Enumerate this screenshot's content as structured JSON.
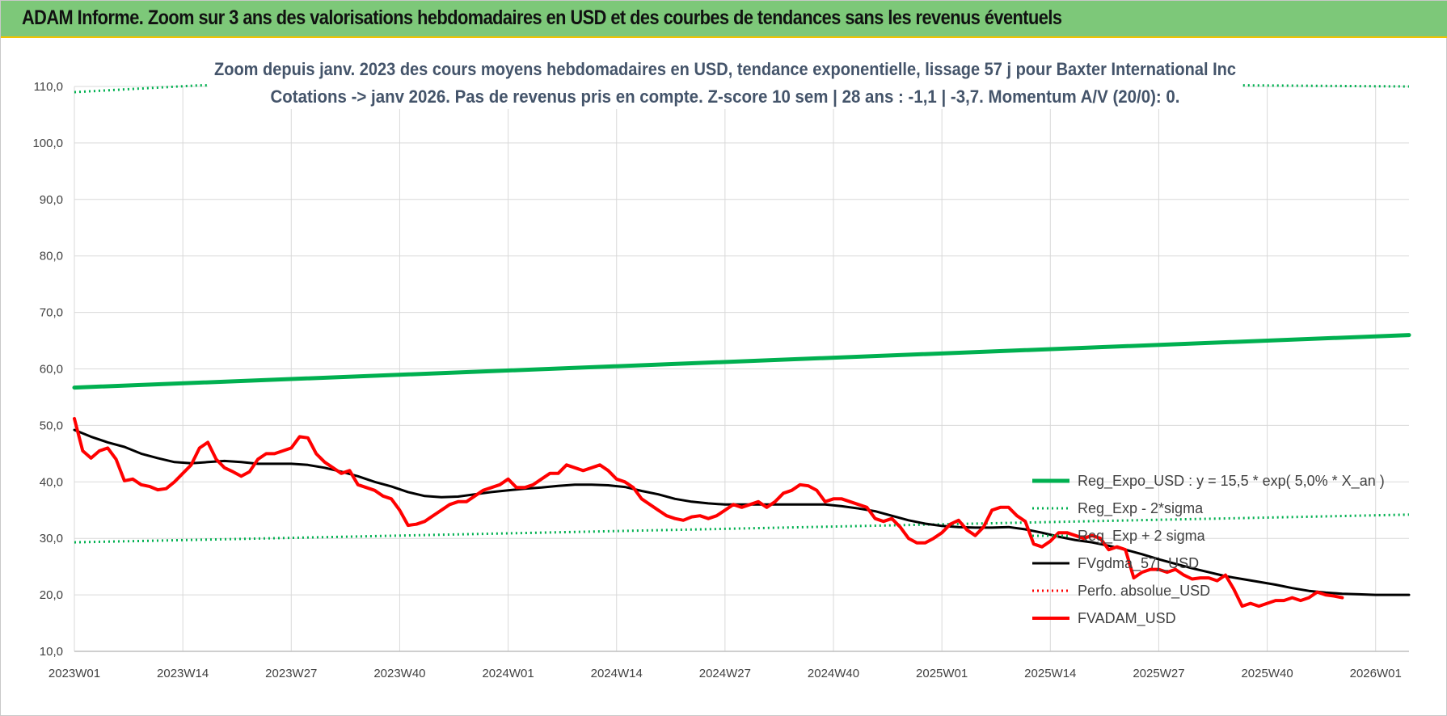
{
  "banner": {
    "title": "ADAM Informe. Zoom sur 3 ans des valorisations hebdomadaires en USD et des courbes de tendances sans les revenus éventuels"
  },
  "colors": {
    "banner_bg": "#7dc879",
    "reg_expo": "#00b050",
    "fv_adam": "#ff0000",
    "fvgdma": "#000000",
    "text": "#404040",
    "subtitle": "#44546a",
    "grid": "#d9d9d9"
  },
  "chart_data": {
    "type": "line",
    "title": [
      "Zoom depuis janv. 2023 des cours moyens hebdomadaires en USD, tendance exponentielle, lissage 57 j pour Baxter International Inc",
      "Cotations -> janv 2026. Pas de revenus pris en compte. Z-score 10 sem | 28 ans : -1,1 | -3,7. Momentum A/V (20/0): 0."
    ],
    "xlabel": "",
    "ylabel": "",
    "ylim": [
      10,
      110
    ],
    "yticks": [
      "10,0",
      "20,0",
      "30,0",
      "40,0",
      "50,0",
      "60,0",
      "70,0",
      "80,0",
      "90,0",
      "100,0",
      "110,0"
    ],
    "x_range_weeks": [
      0,
      160
    ],
    "x_ticks": [
      {
        "label": "2023W01",
        "week": 0
      },
      {
        "label": "2023W14",
        "week": 13
      },
      {
        "label": "2023W27",
        "week": 26
      },
      {
        "label": "2023W40",
        "week": 39
      },
      {
        "label": "2024W01",
        "week": 52
      },
      {
        "label": "2024W14",
        "week": 65
      },
      {
        "label": "2024W27",
        "week": 78
      },
      {
        "label": "2024W40",
        "week": 91
      },
      {
        "label": "2025W01",
        "week": 104
      },
      {
        "label": "2025W14",
        "week": 117
      },
      {
        "label": "2025W27",
        "week": 130
      },
      {
        "label": "2025W40",
        "week": 143
      },
      {
        "label": "2026W01",
        "week": 156
      }
    ],
    "grid": true,
    "legend_position": "lower-right",
    "series": [
      {
        "name": "Reg_Expo_USD : y = 15,5 * exp( 5,0% *  X_an )",
        "color": "#00b050",
        "style": "solid",
        "width": 5,
        "points": [
          [
            0,
            56.7
          ],
          [
            160,
            66.0
          ]
        ]
      },
      {
        "name": "Reg_Exp - 2*sigma",
        "color": "#00b050",
        "style": "dotted",
        "width": 3,
        "points": [
          [
            0,
            29.3
          ],
          [
            160,
            34.2
          ]
        ]
      },
      {
        "name": "Reg_Exp + 2 sigma",
        "color": "#00b050",
        "style": "dotted",
        "width": 3,
        "points": [
          [
            0,
            109.0
          ],
          [
            15,
            110.2
          ],
          [
            140,
            110.2
          ],
          [
            160,
            110.0
          ]
        ]
      },
      {
        "name": "FVgdma_57j_USD",
        "color": "#000000",
        "style": "solid",
        "width": 3,
        "points": [
          [
            0,
            49.2
          ],
          [
            2,
            48.0
          ],
          [
            4,
            47.0
          ],
          [
            6,
            46.2
          ],
          [
            8,
            45.0
          ],
          [
            10,
            44.2
          ],
          [
            12,
            43.5
          ],
          [
            14,
            43.3
          ],
          [
            16,
            43.5
          ],
          [
            18,
            43.7
          ],
          [
            20,
            43.5
          ],
          [
            22,
            43.2
          ],
          [
            24,
            43.2
          ],
          [
            26,
            43.2
          ],
          [
            28,
            43.0
          ],
          [
            30,
            42.5
          ],
          [
            32,
            41.8
          ],
          [
            34,
            41.0
          ],
          [
            36,
            40.0
          ],
          [
            38,
            39.2
          ],
          [
            40,
            38.2
          ],
          [
            42,
            37.5
          ],
          [
            44,
            37.3
          ],
          [
            46,
            37.4
          ],
          [
            48,
            37.8
          ],
          [
            50,
            38.2
          ],
          [
            52,
            38.5
          ],
          [
            54,
            38.8
          ],
          [
            56,
            39.0
          ],
          [
            58,
            39.3
          ],
          [
            60,
            39.5
          ],
          [
            62,
            39.5
          ],
          [
            64,
            39.4
          ],
          [
            66,
            39.1
          ],
          [
            68,
            38.4
          ],
          [
            70,
            37.8
          ],
          [
            72,
            37.0
          ],
          [
            74,
            36.5
          ],
          [
            76,
            36.2
          ],
          [
            78,
            36.0
          ],
          [
            80,
            36.0
          ],
          [
            82,
            36.0
          ],
          [
            84,
            36.0
          ],
          [
            86,
            36.0
          ],
          [
            88,
            36.0
          ],
          [
            90,
            36.0
          ],
          [
            92,
            35.7
          ],
          [
            94,
            35.3
          ],
          [
            96,
            34.8
          ],
          [
            98,
            34.0
          ],
          [
            100,
            33.2
          ],
          [
            102,
            32.6
          ],
          [
            104,
            32.2
          ],
          [
            106,
            32.0
          ],
          [
            108,
            31.9
          ],
          [
            110,
            31.9
          ],
          [
            112,
            32.0
          ],
          [
            114,
            31.6
          ],
          [
            116,
            31.0
          ],
          [
            118,
            30.3
          ],
          [
            120,
            29.7
          ],
          [
            122,
            29.3
          ],
          [
            124,
            28.7
          ],
          [
            126,
            28.0
          ],
          [
            128,
            27.2
          ],
          [
            130,
            26.3
          ],
          [
            132,
            25.5
          ],
          [
            134,
            24.7
          ],
          [
            136,
            24.0
          ],
          [
            138,
            23.3
          ],
          [
            140,
            22.8
          ],
          [
            142,
            22.3
          ],
          [
            144,
            21.8
          ],
          [
            146,
            21.2
          ],
          [
            148,
            20.7
          ],
          [
            150,
            20.4
          ],
          [
            152,
            20.2
          ],
          [
            154,
            20.1
          ],
          [
            156,
            20.0
          ],
          [
            158,
            20.0
          ],
          [
            160,
            20.0
          ]
        ]
      },
      {
        "name": "Perfo. absolue_USD",
        "color": "#ff0000",
        "style": "dotted",
        "width": 3,
        "points": []
      },
      {
        "name": "FVADAM_USD",
        "color": "#ff0000",
        "style": "solid",
        "width": 4,
        "points": [
          [
            0,
            51.2
          ],
          [
            1,
            45.5
          ],
          [
            2,
            44.2
          ],
          [
            3,
            45.5
          ],
          [
            4,
            46.0
          ],
          [
            5,
            44.0
          ],
          [
            6,
            40.2
          ],
          [
            7,
            40.5
          ],
          [
            8,
            39.5
          ],
          [
            9,
            39.2
          ],
          [
            10,
            38.6
          ],
          [
            11,
            38.8
          ],
          [
            12,
            40.0
          ],
          [
            13,
            41.5
          ],
          [
            14,
            43.0
          ],
          [
            15,
            46.0
          ],
          [
            16,
            47.0
          ],
          [
            17,
            44.0
          ],
          [
            18,
            42.5
          ],
          [
            19,
            41.8
          ],
          [
            20,
            41.0
          ],
          [
            21,
            41.8
          ],
          [
            22,
            44.0
          ],
          [
            23,
            45.0
          ],
          [
            24,
            45.0
          ],
          [
            25,
            45.5
          ],
          [
            26,
            46.0
          ],
          [
            27,
            48.0
          ],
          [
            28,
            47.8
          ],
          [
            29,
            45.0
          ],
          [
            30,
            43.5
          ],
          [
            31,
            42.5
          ],
          [
            32,
            41.5
          ],
          [
            33,
            42.0
          ],
          [
            34,
            39.5
          ],
          [
            35,
            39.0
          ],
          [
            36,
            38.5
          ],
          [
            37,
            37.5
          ],
          [
            38,
            37.0
          ],
          [
            39,
            35.0
          ],
          [
            40,
            32.3
          ],
          [
            41,
            32.5
          ],
          [
            42,
            33.0
          ],
          [
            43,
            34.0
          ],
          [
            44,
            35.0
          ],
          [
            45,
            36.0
          ],
          [
            46,
            36.5
          ],
          [
            47,
            36.5
          ],
          [
            48,
            37.5
          ],
          [
            49,
            38.5
          ],
          [
            50,
            39.0
          ],
          [
            51,
            39.5
          ],
          [
            52,
            40.5
          ],
          [
            53,
            39.0
          ],
          [
            54,
            39.0
          ],
          [
            55,
            39.5
          ],
          [
            56,
            40.5
          ],
          [
            57,
            41.5
          ],
          [
            58,
            41.5
          ],
          [
            59,
            43.0
          ],
          [
            60,
            42.5
          ],
          [
            61,
            42.0
          ],
          [
            62,
            42.5
          ],
          [
            63,
            43.0
          ],
          [
            64,
            42.0
          ],
          [
            65,
            40.5
          ],
          [
            66,
            40.0
          ],
          [
            67,
            39.0
          ],
          [
            68,
            37.0
          ],
          [
            69,
            36.0
          ],
          [
            70,
            35.0
          ],
          [
            71,
            34.0
          ],
          [
            72,
            33.5
          ],
          [
            73,
            33.2
          ],
          [
            74,
            33.8
          ],
          [
            75,
            34.0
          ],
          [
            76,
            33.5
          ],
          [
            77,
            34.0
          ],
          [
            78,
            35.0
          ],
          [
            79,
            36.0
          ],
          [
            80,
            35.5
          ],
          [
            81,
            36.0
          ],
          [
            82,
            36.5
          ],
          [
            83,
            35.5
          ],
          [
            84,
            36.5
          ],
          [
            85,
            38.0
          ],
          [
            86,
            38.5
          ],
          [
            87,
            39.5
          ],
          [
            88,
            39.3
          ],
          [
            89,
            38.5
          ],
          [
            90,
            36.5
          ],
          [
            91,
            37.0
          ],
          [
            92,
            37.0
          ],
          [
            93,
            36.5
          ],
          [
            94,
            36.0
          ],
          [
            95,
            35.5
          ],
          [
            96,
            33.5
          ],
          [
            97,
            33.0
          ],
          [
            98,
            33.5
          ],
          [
            99,
            32.0
          ],
          [
            100,
            30.0
          ],
          [
            101,
            29.2
          ],
          [
            102,
            29.2
          ],
          [
            103,
            30.0
          ],
          [
            104,
            31.0
          ],
          [
            105,
            32.5
          ],
          [
            106,
            33.2
          ],
          [
            107,
            31.5
          ],
          [
            108,
            30.5
          ],
          [
            109,
            32.0
          ],
          [
            110,
            35.0
          ],
          [
            111,
            35.5
          ],
          [
            112,
            35.5
          ],
          [
            113,
            34.0
          ],
          [
            114,
            33.0
          ],
          [
            115,
            29.0
          ],
          [
            116,
            28.5
          ],
          [
            117,
            29.5
          ],
          [
            118,
            31.0
          ],
          [
            119,
            31.0
          ],
          [
            120,
            30.5
          ],
          [
            121,
            30.0
          ],
          [
            122,
            30.5
          ],
          [
            123,
            30.0
          ],
          [
            124,
            28.0
          ],
          [
            125,
            28.5
          ],
          [
            126,
            28.0
          ],
          [
            127,
            23.0
          ],
          [
            128,
            24.0
          ],
          [
            129,
            24.5
          ],
          [
            130,
            24.5
          ],
          [
            131,
            24.0
          ],
          [
            132,
            24.5
          ],
          [
            133,
            23.5
          ],
          [
            134,
            22.8
          ],
          [
            135,
            23.0
          ],
          [
            136,
            23.0
          ],
          [
            137,
            22.5
          ],
          [
            138,
            23.5
          ],
          [
            139,
            21.0
          ],
          [
            140,
            18.0
          ],
          [
            141,
            18.5
          ],
          [
            142,
            18.0
          ],
          [
            143,
            18.5
          ],
          [
            144,
            19.0
          ],
          [
            145,
            19.0
          ],
          [
            146,
            19.5
          ],
          [
            147,
            19.0
          ],
          [
            148,
            19.5
          ],
          [
            149,
            20.5
          ],
          [
            150,
            20.0
          ],
          [
            151,
            19.8
          ],
          [
            152,
            19.5
          ]
        ]
      }
    ]
  }
}
